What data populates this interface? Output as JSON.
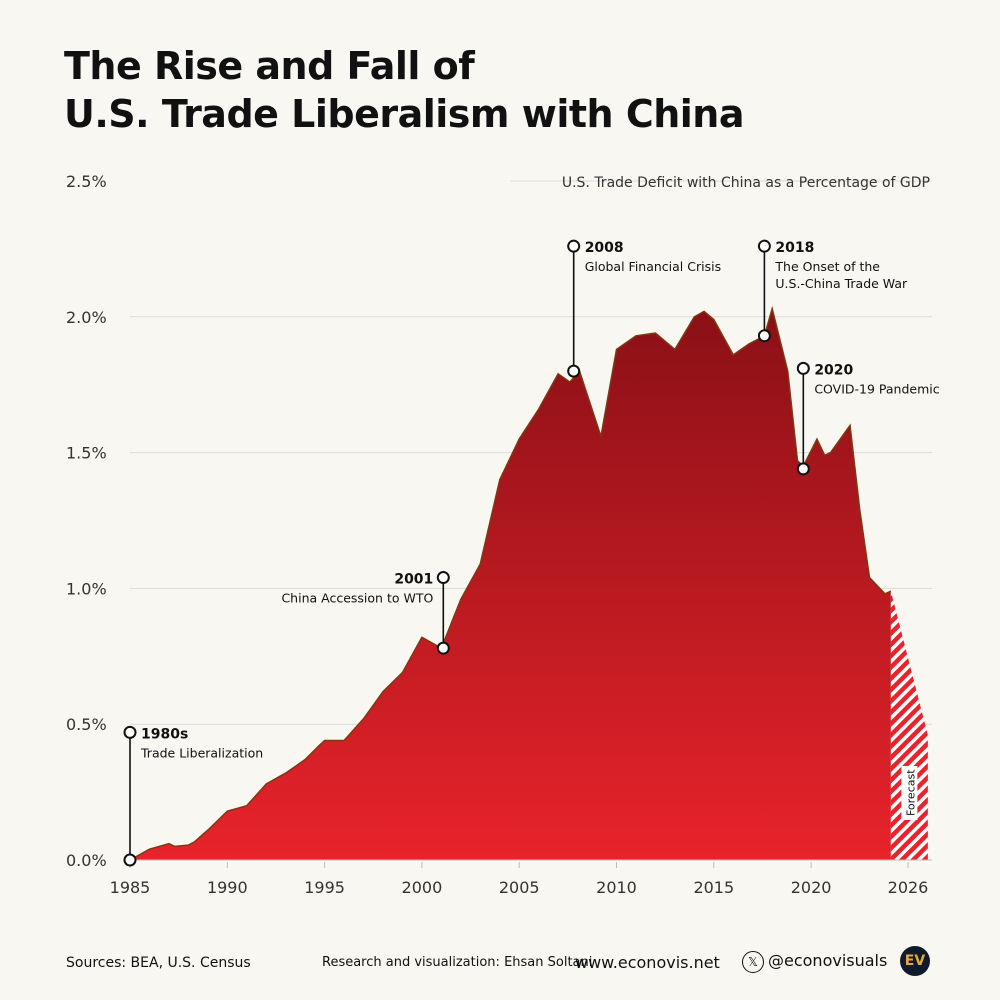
{
  "title_line1": "The Rise and Fall of",
  "title_line2": "U.S. Trade Liberalism with China",
  "chart_data": {
    "type": "area",
    "title": "U.S. Trade Deficit with China as a Percentage of GDP",
    "xlabel": "",
    "ylabel": "",
    "xlim": [
      1985,
      2026
    ],
    "ylim": [
      0,
      2.5
    ],
    "grid": true,
    "x_ticks": [
      1985,
      1990,
      1995,
      2000,
      2005,
      2010,
      2015,
      2020,
      2026
    ],
    "y_ticks": [
      0,
      0.5,
      1.0,
      1.5,
      2.0,
      2.5
    ],
    "y_tick_labels": [
      "0.0%",
      "0.5%",
      "1.0%",
      "1.5%",
      "2.0%",
      "2.5%"
    ],
    "series": [
      {
        "x": [
          1985,
          1986,
          1987,
          1987.3,
          1988,
          1988.3,
          1989,
          1990,
          1991,
          1992,
          1993,
          1994,
          1994.7,
          1995,
          1996,
          1997,
          1998,
          1999,
          2000,
          2001,
          2002,
          2003,
          2004,
          2005,
          2006,
          2007,
          2007.6,
          2008.1,
          2009.2,
          2010,
          2011,
          2012,
          2013,
          2014,
          2014.5,
          2015,
          2016,
          2016.8,
          2017.6,
          2018,
          2018.8,
          2019.3,
          2019.6,
          2020.3,
          2020.7,
          2021,
          2022,
          2022.5,
          2023,
          2023.8,
          2024.1
        ],
        "y": [
          0,
          0.04,
          0.06,
          0.05,
          0.055,
          0.066,
          0.11,
          0.18,
          0.2,
          0.28,
          0.32,
          0.37,
          0.42,
          0.44,
          0.44,
          0.52,
          0.62,
          0.69,
          0.82,
          0.78,
          0.96,
          1.09,
          1.4,
          1.55,
          1.66,
          1.79,
          1.76,
          1.8,
          1.56,
          1.88,
          1.93,
          1.94,
          1.88,
          2.0,
          2.02,
          1.99,
          1.86,
          1.9,
          1.93,
          2.03,
          1.8,
          1.47,
          1.45,
          1.55,
          1.49,
          1.5,
          1.6,
          1.29,
          1.04,
          0.98,
          0.99
        ]
      }
    ],
    "forecast": {
      "label": "Forecast",
      "x": [
        2024.1,
        2026
      ],
      "y": [
        0.99,
        0.46
      ]
    },
    "colors": {
      "top": "#8a1016",
      "bottom": "#e8232b",
      "outline": "#7a3a12",
      "grid": "#dddcd6"
    },
    "annotations": [
      {
        "year": "1980s",
        "text": [
          "Trade Liberalization"
        ],
        "x": 1985,
        "y": 0,
        "label_y": 0.47,
        "side": "right"
      },
      {
        "year": "2001",
        "text": [
          "China Accession to WTO"
        ],
        "x": 2001.1,
        "y": 0.78,
        "label_y": 1.04,
        "side": "left"
      },
      {
        "year": "2008",
        "text": [
          "Global Financial Crisis"
        ],
        "x": 2007.8,
        "y": 1.8,
        "label_y": 2.26,
        "side": "right"
      },
      {
        "year": "2018",
        "text": [
          "The Onset of the",
          "U.S.-China Trade War"
        ],
        "x": 2017.6,
        "y": 1.93,
        "label_y": 2.26,
        "side": "right"
      },
      {
        "year": "2020",
        "text": [
          "COVID-19 Pandemic"
        ],
        "x": 2019.6,
        "y": 1.44,
        "label_y": 1.81,
        "side": "right"
      }
    ]
  },
  "footer": {
    "sources": "Sources: BEA, U.S. Census",
    "credit": "Research and visualization: Ehsan Soltani",
    "website": "www.econovis.net",
    "social": "@econovisuals",
    "logo": "EV"
  }
}
